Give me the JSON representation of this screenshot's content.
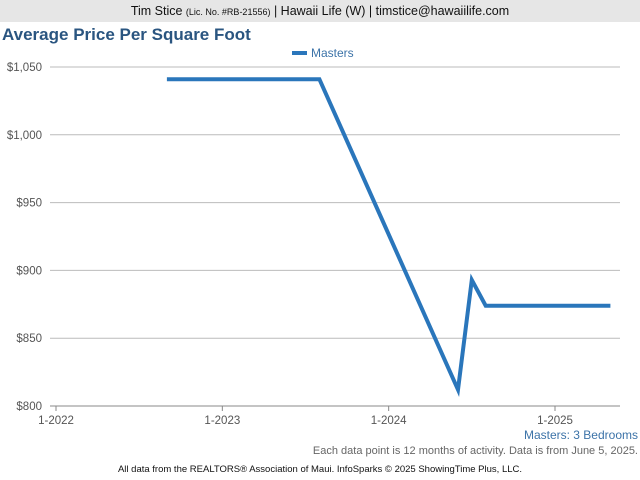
{
  "header": {
    "name": "Tim Stice",
    "license": "(Lic. No. #RB-21556)",
    "rest": "| Hawaii Life (W) | timstice@hawaiilife.com"
  },
  "title": "Average Price Per Square Foot",
  "caption": "Masters: 3 Bedrooms",
  "note": "Each data point is 12 months of activity. Data is from June 5, 2025.",
  "footer": "All data from the REALTORS® Association of Maui. InfoSparks © 2025 ShowingTime Plus, LLC.",
  "colors": {
    "series": "#2a76bb",
    "grid": "#bbbbbb",
    "title": "#2a5580"
  },
  "chart_data": {
    "type": "line",
    "title": "Average Price Per Square Foot",
    "xlabel": "",
    "ylabel": "",
    "legend_position": "top-center",
    "grid": true,
    "x_ticks": [
      "1-2022",
      "1-2023",
      "1-2024",
      "1-2025"
    ],
    "y_ticks": [
      "$800",
      "$850",
      "$900",
      "$950",
      "$1,000",
      "$1,050"
    ],
    "ylim": [
      800,
      1050
    ],
    "xlim": [
      "2022-01",
      "2025-06"
    ],
    "series": [
      {
        "name": "Masters",
        "x": [
          "2022-09",
          "2023-01",
          "2023-08",
          "2024-06",
          "2024-07",
          "2024-08",
          "2025-01",
          "2025-05"
        ],
        "y": [
          1041,
          1041,
          1041,
          812,
          893,
          874,
          874,
          874
        ]
      }
    ]
  }
}
